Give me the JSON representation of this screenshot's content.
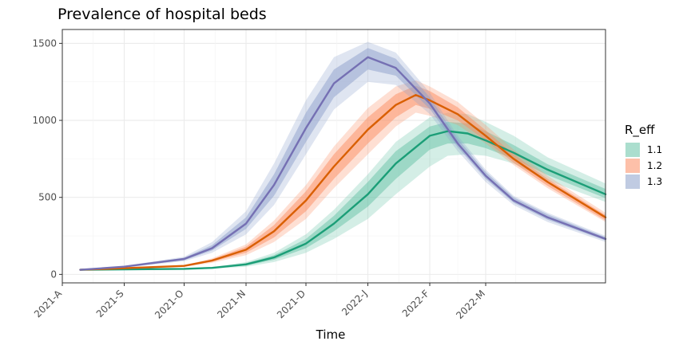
{
  "chart_data": {
    "type": "line",
    "title": "Prevalence of hospital beds",
    "xlabel": "Time",
    "ylabel": "",
    "ylim": [
      -55,
      1590
    ],
    "xlim": [
      "2021-08-01",
      "2022-04-30"
    ],
    "x_ticks": [
      {
        "date": "2021-08-01",
        "label": "2021-A"
      },
      {
        "date": "2021-09-01",
        "label": "2021-S"
      },
      {
        "date": "2021-10-01",
        "label": "2021-O"
      },
      {
        "date": "2021-11-01",
        "label": "2021-N"
      },
      {
        "date": "2021-12-01",
        "label": "2021-D"
      },
      {
        "date": "2022-01-01",
        "label": "2022-J"
      },
      {
        "date": "2022-02-01",
        "label": "2022-F"
      },
      {
        "date": "2022-03-01",
        "label": "2022-M"
      }
    ],
    "y_ticks": [
      0,
      500,
      1000,
      1500
    ],
    "grid": true,
    "legend": {
      "title": "R_eff",
      "position": "right"
    },
    "series": [
      {
        "name": "1.1",
        "color": "#1b9e77",
        "band_color": "#66c2a5",
        "x": [
          "2021-08-10",
          "2021-09-01",
          "2021-10-01",
          "2021-10-15",
          "2021-11-01",
          "2021-11-15",
          "2021-12-01",
          "2021-12-15",
          "2022-01-01",
          "2022-01-15",
          "2022-02-01",
          "2022-02-10",
          "2022-02-20",
          "2022-03-01",
          "2022-03-15",
          "2022-04-01",
          "2022-04-30"
        ],
        "values": [
          30,
          33,
          36,
          42,
          65,
          110,
          200,
          330,
          520,
          720,
          900,
          930,
          915,
          870,
          790,
          680,
          520
        ],
        "band_outer": {
          "lower": [
            28,
            30,
            32,
            36,
            50,
            80,
            140,
            230,
            360,
            520,
            700,
            770,
            780,
            770,
            720,
            610,
            470
          ],
          "upper": [
            32,
            36,
            40,
            48,
            80,
            140,
            260,
            420,
            650,
            860,
            1020,
            1050,
            1040,
            990,
            900,
            760,
            590
          ]
        },
        "band_inner": {
          "lower": [
            29,
            31,
            34,
            39,
            57,
            95,
            170,
            280,
            440,
            620,
            810,
            850,
            850,
            820,
            750,
            645,
            495
          ],
          "upper": [
            31,
            35,
            38,
            45,
            73,
            125,
            230,
            380,
            600,
            800,
            960,
            990,
            980,
            930,
            840,
            715,
            555
          ]
        }
      },
      {
        "name": "1.2",
        "color": "#d95f02",
        "band_color": "#fc8d62",
        "x": [
          "2021-08-10",
          "2021-09-01",
          "2021-10-01",
          "2021-10-15",
          "2021-11-01",
          "2021-11-15",
          "2021-12-01",
          "2021-12-15",
          "2022-01-01",
          "2022-01-15",
          "2022-01-25",
          "2022-02-01",
          "2022-02-15",
          "2022-03-01",
          "2022-03-15",
          "2022-04-01",
          "2022-04-30"
        ],
        "values": [
          30,
          40,
          55,
          90,
          160,
          280,
          480,
          700,
          940,
          1100,
          1165,
          1130,
          1040,
          900,
          750,
          600,
          370
        ],
        "band_outer": {
          "lower": [
            28,
            37,
            50,
            75,
            125,
            210,
            360,
            560,
            780,
            960,
            1050,
            1030,
            970,
            850,
            710,
            560,
            340
          ],
          "upper": [
            32,
            43,
            60,
            105,
            195,
            350,
            580,
            830,
            1080,
            1220,
            1260,
            1220,
            1120,
            970,
            810,
            640,
            400
          ]
        },
        "band_inner": {
          "lower": [
            29,
            38,
            52,
            82,
            140,
            240,
            410,
            620,
            850,
            1020,
            1100,
            1075,
            1000,
            870,
            725,
            575,
            350
          ],
          "upper": [
            31,
            42,
            58,
            98,
            180,
            320,
            540,
            780,
            1020,
            1170,
            1225,
            1190,
            1085,
            935,
            780,
            620,
            385
          ]
        }
      },
      {
        "name": "1.3",
        "color": "#7570b3",
        "band_color": "#8da0cb",
        "x": [
          "2021-08-10",
          "2021-09-01",
          "2021-10-01",
          "2021-10-15",
          "2021-11-01",
          "2021-11-15",
          "2021-12-01",
          "2021-12-15",
          "2022-01-01",
          "2022-01-15",
          "2022-02-01",
          "2022-02-15",
          "2022-03-01",
          "2022-03-15",
          "2022-04-01",
          "2022-04-30"
        ],
        "values": [
          30,
          50,
          100,
          170,
          330,
          580,
          950,
          1240,
          1410,
          1340,
          1110,
          850,
          640,
          480,
          370,
          230
        ],
        "band_outer": {
          "lower": [
            28,
            45,
            85,
            140,
            260,
            450,
            780,
            1070,
            1250,
            1230,
            1040,
            800,
            600,
            450,
            340,
            210
          ],
          "upper": [
            32,
            55,
            115,
            210,
            410,
            720,
            1130,
            1410,
            1510,
            1440,
            1180,
            900,
            680,
            510,
            400,
            250
          ]
        },
        "band_inner": {
          "lower": [
            29,
            47,
            92,
            155,
            295,
            510,
            860,
            1150,
            1330,
            1290,
            1075,
            825,
            620,
            465,
            355,
            220
          ],
          "upper": [
            31,
            53,
            108,
            190,
            370,
            650,
            1050,
            1330,
            1470,
            1400,
            1150,
            880,
            665,
            500,
            390,
            242
          ]
        }
      }
    ]
  }
}
